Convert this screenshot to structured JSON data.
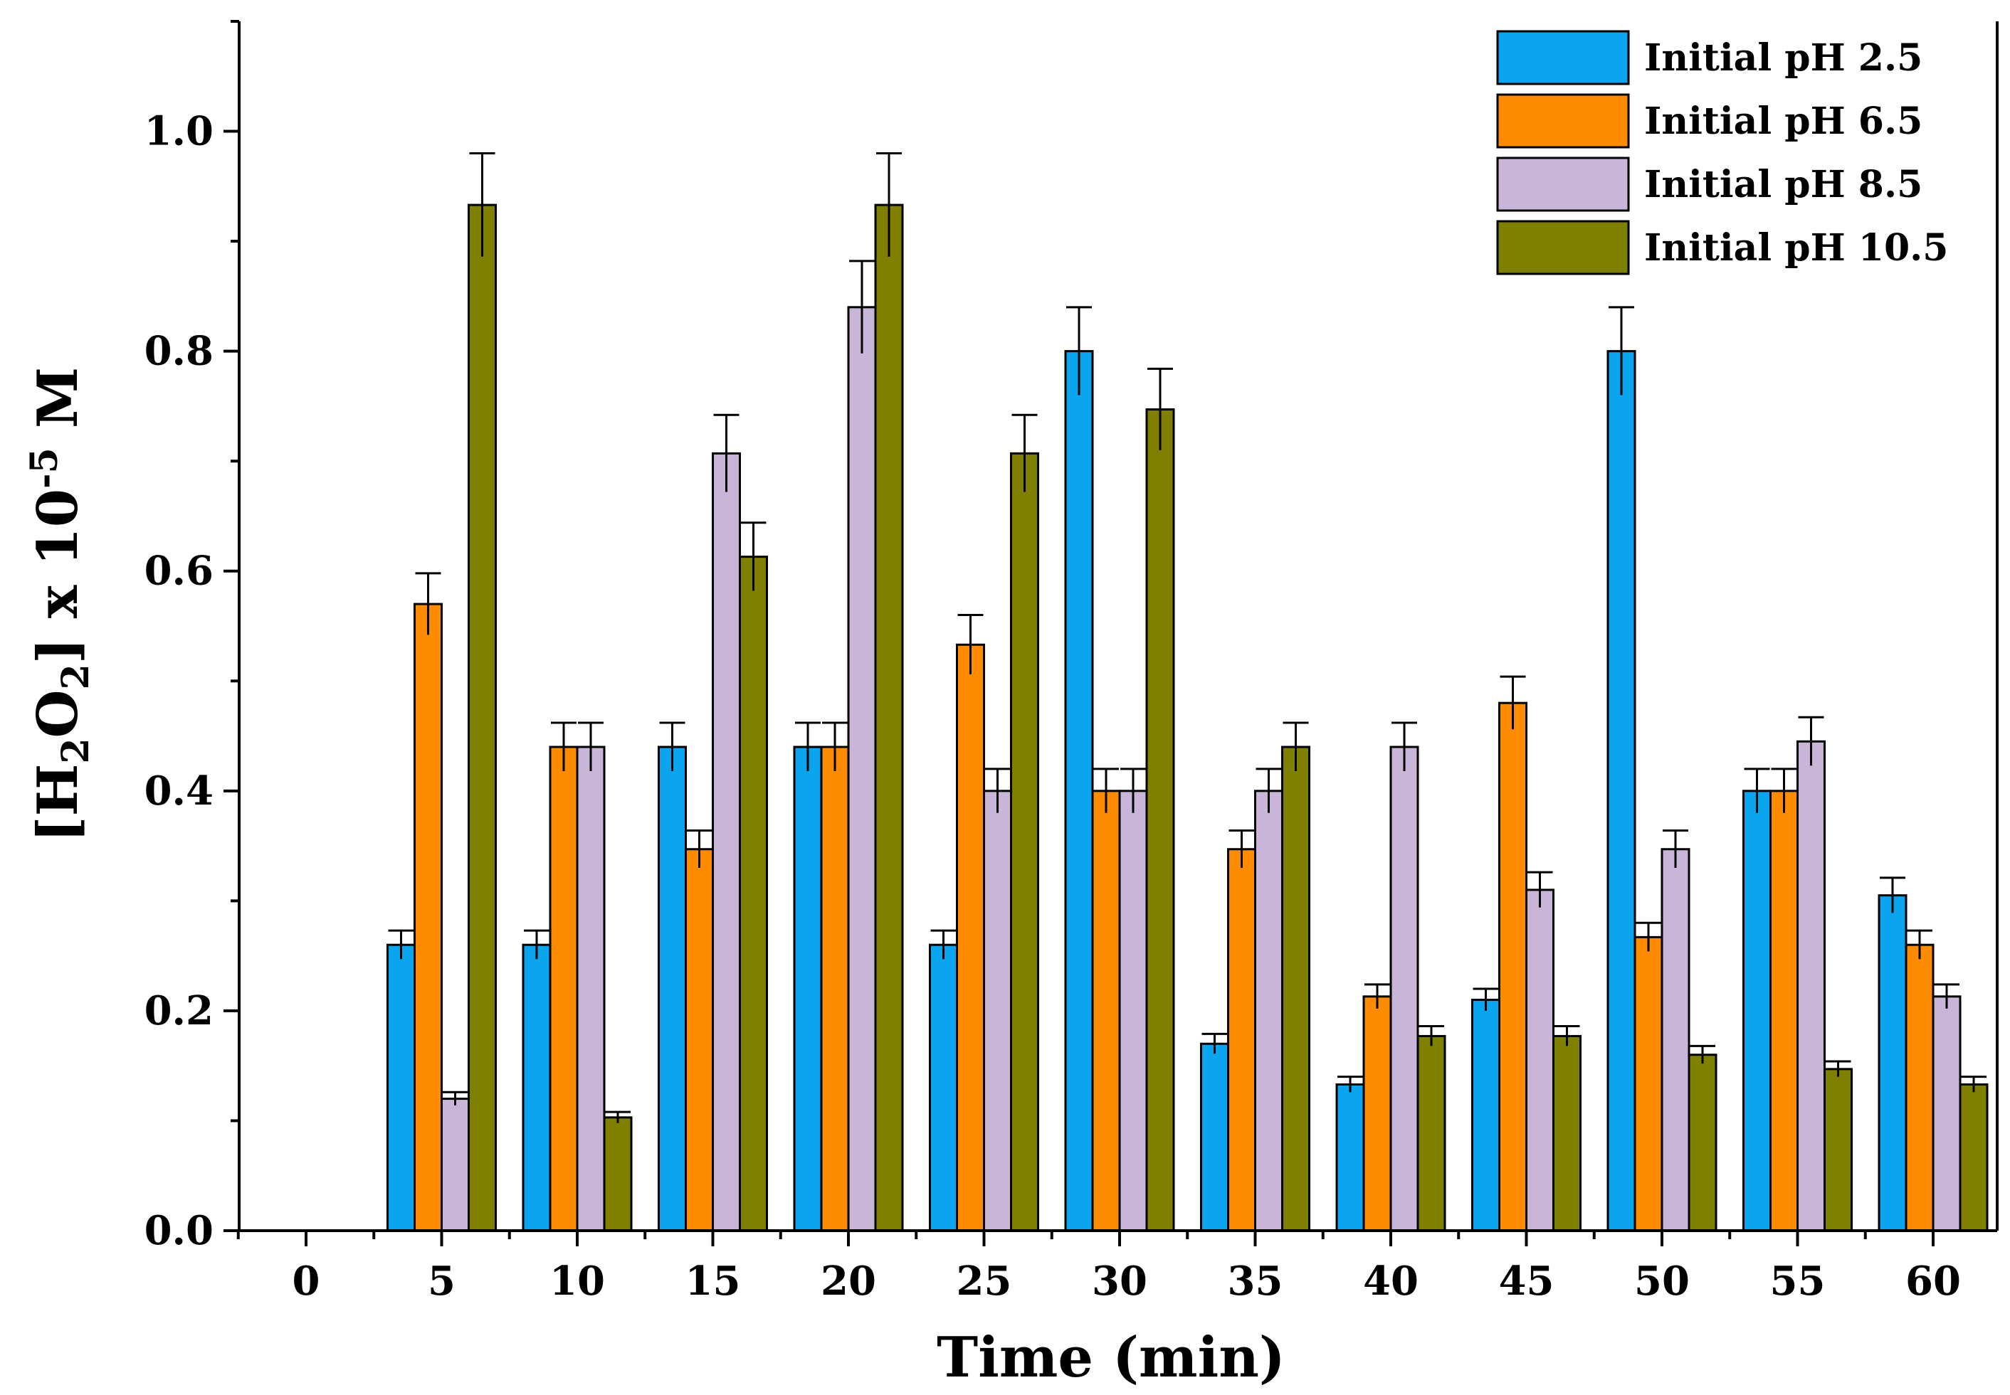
{
  "chart_data": {
    "type": "bar",
    "title": "",
    "xlabel": "Time (min)",
    "ylabel_parts": [
      "[H",
      "2",
      "O",
      "2",
      "] x 10",
      "-5",
      " M"
    ],
    "categories": [
      "0",
      "5",
      "10",
      "15",
      "20",
      "25",
      "30",
      "35",
      "40",
      "45",
      "50",
      "55",
      "60"
    ],
    "ylim": [
      0,
      1.1
    ],
    "yticks": [
      "0.0",
      "0.2",
      "0.4",
      "0.6",
      "0.8",
      "1.0"
    ],
    "ytick_values": [
      0,
      0.2,
      0.4,
      0.6,
      0.8,
      1.0
    ],
    "legend_position": "top-right",
    "series": [
      {
        "name": "Initial pH 2.5",
        "color": "#0aa5ee",
        "values": [
          0,
          0.26,
          0.26,
          0.44,
          0.44,
          0.26,
          0.8,
          0.17,
          0.133,
          0.21,
          0.8,
          0.4,
          0.305
        ],
        "errors": [
          0,
          0.013,
          0.013,
          0.022,
          0.022,
          0.013,
          0.04,
          0.009,
          0.007,
          0.01,
          0.04,
          0.02,
          0.016
        ]
      },
      {
        "name": "Initial pH 6.5",
        "color": "#ff8c00",
        "values": [
          0,
          0.57,
          0.44,
          0.347,
          0.44,
          0.533,
          0.4,
          0.347,
          0.213,
          0.48,
          0.267,
          0.4,
          0.26
        ],
        "errors": [
          0,
          0.028,
          0.022,
          0.017,
          0.022,
          0.027,
          0.02,
          0.017,
          0.011,
          0.024,
          0.013,
          0.02,
          0.013
        ]
      },
      {
        "name": "Initial pH 8.5",
        "color": "#c8b5d8",
        "values": [
          0,
          0.12,
          0.44,
          0.707,
          0.84,
          0.4,
          0.4,
          0.4,
          0.44,
          0.31,
          0.347,
          0.445,
          0.213
        ],
        "errors": [
          0,
          0.006,
          0.022,
          0.035,
          0.042,
          0.02,
          0.02,
          0.02,
          0.022,
          0.016,
          0.017,
          0.022,
          0.011
        ]
      },
      {
        "name": "Initial pH 10.5",
        "color": "#7f7f00",
        "values": [
          0,
          0.933,
          0.103,
          0.613,
          0.933,
          0.707,
          0.747,
          0.44,
          0.177,
          0.177,
          0.16,
          0.147,
          0.133
        ],
        "errors": [
          0,
          0.047,
          0.005,
          0.031,
          0.047,
          0.035,
          0.037,
          0.022,
          0.009,
          0.009,
          0.008,
          0.007,
          0.007
        ]
      }
    ]
  }
}
